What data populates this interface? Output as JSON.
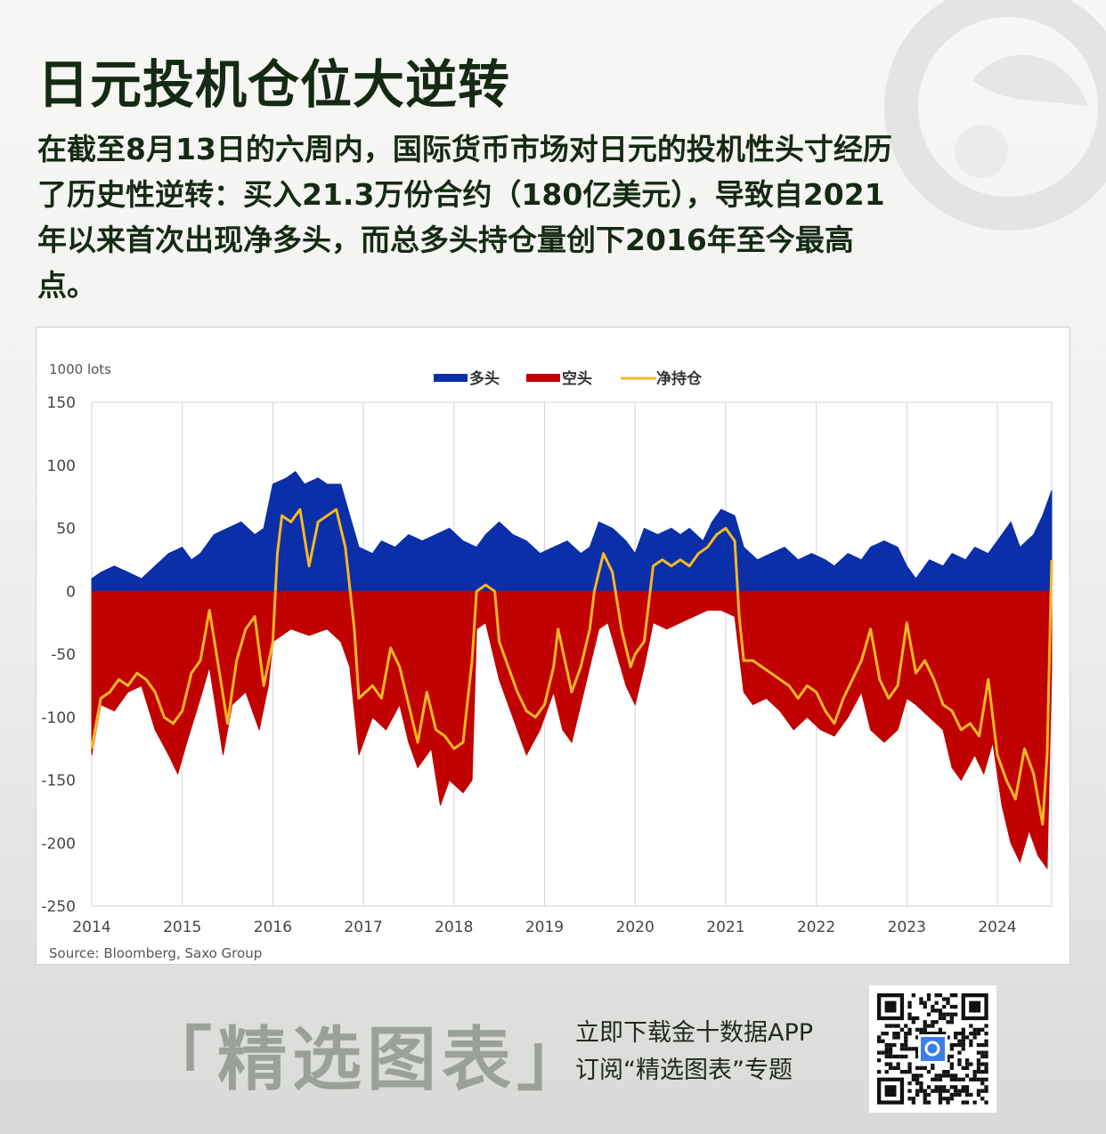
{
  "title": "日元投机仓位大逆转",
  "description": "在截至8月13日的六周内，国际货币市场对日元的投机性头寸经历了历史性逆转：买入21.3万份合约（180亿美元），导致自2021年以来首次出现净多头，而总多头持仓量创下2016年至今最高点。",
  "chart_data": {
    "type": "area",
    "unit_label": "1000 lots",
    "source": "Source: Bloomberg, Saxo Group",
    "ylim": [
      -250,
      150
    ],
    "y_ticks": [
      150,
      100,
      50,
      0,
      -50,
      -100,
      -150,
      -200,
      -250
    ],
    "xlim": [
      2014,
      2024.6
    ],
    "x_ticks": [
      2014,
      2015,
      2016,
      2017,
      2018,
      2019,
      2020,
      2021,
      2022,
      2023,
      2024
    ],
    "grid": "vertical",
    "legend_position": "top-center",
    "series": [
      {
        "name": "多头",
        "kind": "area",
        "color": "#0a2fa8",
        "points": [
          [
            2014.0,
            10
          ],
          [
            2014.1,
            15
          ],
          [
            2014.25,
            20
          ],
          [
            2014.4,
            15
          ],
          [
            2014.55,
            10
          ],
          [
            2014.7,
            20
          ],
          [
            2014.85,
            30
          ],
          [
            2015.0,
            35
          ],
          [
            2015.1,
            25
          ],
          [
            2015.2,
            30
          ],
          [
            2015.35,
            45
          ],
          [
            2015.5,
            50
          ],
          [
            2015.65,
            55
          ],
          [
            2015.8,
            45
          ],
          [
            2015.9,
            50
          ],
          [
            2016.0,
            85
          ],
          [
            2016.15,
            90
          ],
          [
            2016.25,
            95
          ],
          [
            2016.35,
            85
          ],
          [
            2016.5,
            90
          ],
          [
            2016.6,
            85
          ],
          [
            2016.75,
            85
          ],
          [
            2016.85,
            60
          ],
          [
            2016.95,
            35
          ],
          [
            2017.1,
            30
          ],
          [
            2017.2,
            40
          ],
          [
            2017.35,
            35
          ],
          [
            2017.5,
            45
          ],
          [
            2017.65,
            40
          ],
          [
            2017.8,
            45
          ],
          [
            2017.95,
            50
          ],
          [
            2018.1,
            40
          ],
          [
            2018.25,
            35
          ],
          [
            2018.35,
            45
          ],
          [
            2018.5,
            55
          ],
          [
            2018.65,
            45
          ],
          [
            2018.8,
            40
          ],
          [
            2018.95,
            30
          ],
          [
            2019.1,
            35
          ],
          [
            2019.25,
            40
          ],
          [
            2019.4,
            30
          ],
          [
            2019.5,
            35
          ],
          [
            2019.6,
            55
          ],
          [
            2019.75,
            50
          ],
          [
            2019.9,
            40
          ],
          [
            2020.0,
            30
          ],
          [
            2020.1,
            50
          ],
          [
            2020.25,
            45
          ],
          [
            2020.4,
            50
          ],
          [
            2020.5,
            45
          ],
          [
            2020.6,
            50
          ],
          [
            2020.75,
            40
          ],
          [
            2020.85,
            55
          ],
          [
            2020.95,
            65
          ],
          [
            2021.1,
            60
          ],
          [
            2021.2,
            35
          ],
          [
            2021.35,
            25
          ],
          [
            2021.5,
            30
          ],
          [
            2021.65,
            35
          ],
          [
            2021.8,
            25
          ],
          [
            2021.95,
            30
          ],
          [
            2022.1,
            25
          ],
          [
            2022.2,
            20
          ],
          [
            2022.35,
            30
          ],
          [
            2022.5,
            25
          ],
          [
            2022.6,
            35
          ],
          [
            2022.75,
            40
          ],
          [
            2022.9,
            35
          ],
          [
            2023.0,
            20
          ],
          [
            2023.1,
            10
          ],
          [
            2023.25,
            25
          ],
          [
            2023.4,
            20
          ],
          [
            2023.5,
            30
          ],
          [
            2023.65,
            25
          ],
          [
            2023.75,
            35
          ],
          [
            2023.9,
            30
          ],
          [
            2024.0,
            40
          ],
          [
            2024.15,
            55
          ],
          [
            2024.25,
            35
          ],
          [
            2024.4,
            45
          ],
          [
            2024.5,
            60
          ],
          [
            2024.6,
            80
          ]
        ]
      },
      {
        "name": "空头",
        "kind": "area",
        "color": "#c10000",
        "points": [
          [
            2014.0,
            -130
          ],
          [
            2014.1,
            -90
          ],
          [
            2014.25,
            -95
          ],
          [
            2014.4,
            -80
          ],
          [
            2014.55,
            -75
          ],
          [
            2014.7,
            -110
          ],
          [
            2014.85,
            -130
          ],
          [
            2014.95,
            -145
          ],
          [
            2015.05,
            -120
          ],
          [
            2015.2,
            -85
          ],
          [
            2015.3,
            -60
          ],
          [
            2015.45,
            -130
          ],
          [
            2015.55,
            -90
          ],
          [
            2015.7,
            -80
          ],
          [
            2015.85,
            -110
          ],
          [
            2015.95,
            -75
          ],
          [
            2016.0,
            -40
          ],
          [
            2016.2,
            -30
          ],
          [
            2016.4,
            -35
          ],
          [
            2016.6,
            -30
          ],
          [
            2016.75,
            -40
          ],
          [
            2016.85,
            -60
          ],
          [
            2016.95,
            -130
          ],
          [
            2017.1,
            -100
          ],
          [
            2017.25,
            -110
          ],
          [
            2017.4,
            -90
          ],
          [
            2017.5,
            -120
          ],
          [
            2017.6,
            -140
          ],
          [
            2017.75,
            -125
          ],
          [
            2017.85,
            -170
          ],
          [
            2017.95,
            -150
          ],
          [
            2018.1,
            -160
          ],
          [
            2018.2,
            -150
          ],
          [
            2018.25,
            -30
          ],
          [
            2018.35,
            -25
          ],
          [
            2018.5,
            -70
          ],
          [
            2018.65,
            -100
          ],
          [
            2018.8,
            -130
          ],
          [
            2018.95,
            -110
          ],
          [
            2019.1,
            -80
          ],
          [
            2019.2,
            -110
          ],
          [
            2019.3,
            -120
          ],
          [
            2019.4,
            -90
          ],
          [
            2019.5,
            -60
          ],
          [
            2019.6,
            -30
          ],
          [
            2019.7,
            -25
          ],
          [
            2019.8,
            -50
          ],
          [
            2019.9,
            -75
          ],
          [
            2020.0,
            -90
          ],
          [
            2020.1,
            -60
          ],
          [
            2020.2,
            -25
          ],
          [
            2020.35,
            -30
          ],
          [
            2020.5,
            -25
          ],
          [
            2020.65,
            -20
          ],
          [
            2020.8,
            -15
          ],
          [
            2020.95,
            -15
          ],
          [
            2021.1,
            -20
          ],
          [
            2021.2,
            -80
          ],
          [
            2021.3,
            -90
          ],
          [
            2021.45,
            -85
          ],
          [
            2021.6,
            -95
          ],
          [
            2021.75,
            -110
          ],
          [
            2021.9,
            -100
          ],
          [
            2022.05,
            -110
          ],
          [
            2022.2,
            -115
          ],
          [
            2022.35,
            -100
          ],
          [
            2022.5,
            -80
          ],
          [
            2022.6,
            -110
          ],
          [
            2022.75,
            -120
          ],
          [
            2022.9,
            -110
          ],
          [
            2023.0,
            -85
          ],
          [
            2023.1,
            -90
          ],
          [
            2023.25,
            -100
          ],
          [
            2023.4,
            -110
          ],
          [
            2023.5,
            -140
          ],
          [
            2023.6,
            -150
          ],
          [
            2023.75,
            -130
          ],
          [
            2023.85,
            -145
          ],
          [
            2023.95,
            -120
          ],
          [
            2024.05,
            -170
          ],
          [
            2024.15,
            -200
          ],
          [
            2024.25,
            -215
          ],
          [
            2024.35,
            -190
          ],
          [
            2024.45,
            -210
          ],
          [
            2024.55,
            -220
          ],
          [
            2024.6,
            -60
          ]
        ]
      },
      {
        "name": "净持仓",
        "kind": "line",
        "color": "#f6b824",
        "points": [
          [
            2014.0,
            -125
          ],
          [
            2014.05,
            -105
          ],
          [
            2014.1,
            -85
          ],
          [
            2014.2,
            -80
          ],
          [
            2014.3,
            -70
          ],
          [
            2014.4,
            -75
          ],
          [
            2014.5,
            -65
          ],
          [
            2014.6,
            -70
          ],
          [
            2014.7,
            -80
          ],
          [
            2014.8,
            -100
          ],
          [
            2014.9,
            -105
          ],
          [
            2015.0,
            -95
          ],
          [
            2015.1,
            -65
          ],
          [
            2015.2,
            -55
          ],
          [
            2015.3,
            -15
          ],
          [
            2015.4,
            -60
          ],
          [
            2015.5,
            -105
          ],
          [
            2015.6,
            -55
          ],
          [
            2015.7,
            -30
          ],
          [
            2015.8,
            -20
          ],
          [
            2015.9,
            -75
          ],
          [
            2016.0,
            -40
          ],
          [
            2016.05,
            30
          ],
          [
            2016.1,
            60
          ],
          [
            2016.2,
            55
          ],
          [
            2016.3,
            65
          ],
          [
            2016.4,
            20
          ],
          [
            2016.5,
            55
          ],
          [
            2016.6,
            60
          ],
          [
            2016.7,
            65
          ],
          [
            2016.8,
            35
          ],
          [
            2016.9,
            -30
          ],
          [
            2016.95,
            -85
          ],
          [
            2017.1,
            -75
          ],
          [
            2017.2,
            -85
          ],
          [
            2017.3,
            -45
          ],
          [
            2017.4,
            -60
          ],
          [
            2017.5,
            -90
          ],
          [
            2017.6,
            -120
          ],
          [
            2017.7,
            -80
          ],
          [
            2017.8,
            -110
          ],
          [
            2017.9,
            -115
          ],
          [
            2018.0,
            -125
          ],
          [
            2018.1,
            -120
          ],
          [
            2018.2,
            -55
          ],
          [
            2018.25,
            0
          ],
          [
            2018.35,
            5
          ],
          [
            2018.45,
            0
          ],
          [
            2018.5,
            -40
          ],
          [
            2018.6,
            -60
          ],
          [
            2018.7,
            -80
          ],
          [
            2018.8,
            -95
          ],
          [
            2018.9,
            -100
          ],
          [
            2019.0,
            -90
          ],
          [
            2019.1,
            -60
          ],
          [
            2019.15,
            -30
          ],
          [
            2019.3,
            -80
          ],
          [
            2019.4,
            -60
          ],
          [
            2019.5,
            -30
          ],
          [
            2019.55,
            0
          ],
          [
            2019.65,
            30
          ],
          [
            2019.75,
            15
          ],
          [
            2019.85,
            -30
          ],
          [
            2019.95,
            -60
          ],
          [
            2020.0,
            -50
          ],
          [
            2020.1,
            -40
          ],
          [
            2020.2,
            20
          ],
          [
            2020.3,
            25
          ],
          [
            2020.4,
            20
          ],
          [
            2020.5,
            25
          ],
          [
            2020.6,
            20
          ],
          [
            2020.7,
            30
          ],
          [
            2020.8,
            35
          ],
          [
            2020.9,
            45
          ],
          [
            2021.0,
            50
          ],
          [
            2021.1,
            40
          ],
          [
            2021.15,
            -20
          ],
          [
            2021.2,
            -55
          ],
          [
            2021.3,
            -55
          ],
          [
            2021.4,
            -60
          ],
          [
            2021.5,
            -65
          ],
          [
            2021.6,
            -70
          ],
          [
            2021.7,
            -75
          ],
          [
            2021.8,
            -85
          ],
          [
            2021.9,
            -75
          ],
          [
            2022.0,
            -80
          ],
          [
            2022.1,
            -95
          ],
          [
            2022.2,
            -105
          ],
          [
            2022.3,
            -85
          ],
          [
            2022.4,
            -70
          ],
          [
            2022.5,
            -55
          ],
          [
            2022.6,
            -30
          ],
          [
            2022.7,
            -70
          ],
          [
            2022.8,
            -85
          ],
          [
            2022.9,
            -75
          ],
          [
            2023.0,
            -25
          ],
          [
            2023.1,
            -65
          ],
          [
            2023.2,
            -55
          ],
          [
            2023.3,
            -70
          ],
          [
            2023.4,
            -90
          ],
          [
            2023.5,
            -95
          ],
          [
            2023.6,
            -110
          ],
          [
            2023.7,
            -105
          ],
          [
            2023.8,
            -115
          ],
          [
            2023.9,
            -70
          ],
          [
            2024.0,
            -130
          ],
          [
            2024.1,
            -150
          ],
          [
            2024.2,
            -165
          ],
          [
            2024.3,
            -125
          ],
          [
            2024.4,
            -145
          ],
          [
            2024.5,
            -185
          ],
          [
            2024.55,
            -130
          ],
          [
            2024.6,
            25
          ]
        ]
      }
    ]
  },
  "footer": {
    "brand_title": "「精选图表」",
    "cta_line1": "立即下载金十数据APP",
    "cta_line2": "订阅“精选图表”专题"
  }
}
